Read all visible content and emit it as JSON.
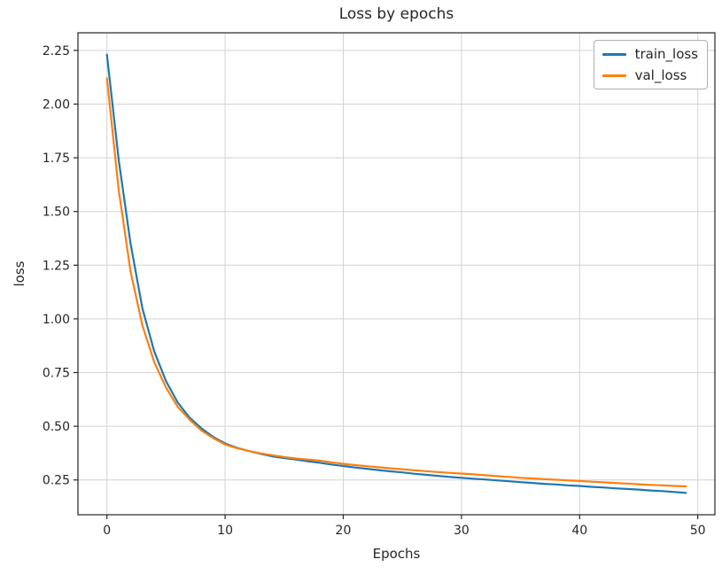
{
  "figure": {
    "background": "#ffffff"
  },
  "chart_data": {
    "type": "line",
    "title": "Loss by epochs",
    "xlabel": "Epochs",
    "ylabel": "loss",
    "x": [
      0,
      1,
      2,
      3,
      4,
      5,
      6,
      7,
      8,
      9,
      10,
      11,
      12,
      13,
      14,
      15,
      16,
      17,
      18,
      19,
      20,
      21,
      22,
      23,
      24,
      25,
      26,
      27,
      28,
      29,
      30,
      31,
      32,
      33,
      34,
      35,
      36,
      37,
      38,
      39,
      40,
      41,
      42,
      43,
      44,
      45,
      46,
      47,
      48,
      49
    ],
    "series": [
      {
        "name": "train_loss",
        "color": "#1f77b4",
        "values": [
          2.23,
          1.74,
          1.35,
          1.05,
          0.85,
          0.71,
          0.61,
          0.54,
          0.49,
          0.45,
          0.42,
          0.4,
          0.385,
          0.372,
          0.36,
          0.352,
          0.345,
          0.337,
          0.33,
          0.322,
          0.315,
          0.308,
          0.302,
          0.296,
          0.29,
          0.285,
          0.279,
          0.274,
          0.269,
          0.264,
          0.26,
          0.256,
          0.252,
          0.248,
          0.244,
          0.24,
          0.236,
          0.232,
          0.229,
          0.225,
          0.222,
          0.218,
          0.215,
          0.211,
          0.208,
          0.205,
          0.201,
          0.198,
          0.194,
          0.19
        ]
      },
      {
        "name": "val_loss",
        "color": "#ff7f0e",
        "values": [
          2.12,
          1.6,
          1.22,
          0.97,
          0.8,
          0.68,
          0.59,
          0.53,
          0.48,
          0.445,
          0.415,
          0.398,
          0.385,
          0.374,
          0.365,
          0.357,
          0.35,
          0.345,
          0.34,
          0.332,
          0.325,
          0.319,
          0.314,
          0.309,
          0.304,
          0.3,
          0.295,
          0.291,
          0.287,
          0.283,
          0.28,
          0.276,
          0.272,
          0.268,
          0.264,
          0.26,
          0.257,
          0.254,
          0.251,
          0.248,
          0.245,
          0.242,
          0.239,
          0.236,
          0.233,
          0.23,
          0.227,
          0.225,
          0.222,
          0.22
        ]
      }
    ],
    "xlim": [
      -2.45,
      51.45
    ],
    "ylim": [
      0.088,
      2.332
    ],
    "xticks": [
      "0",
      "10",
      "20",
      "30",
      "40",
      "50"
    ],
    "yticks": [
      "0.25",
      "0.50",
      "0.75",
      "1.00",
      "1.25",
      "1.50",
      "1.75",
      "2.00",
      "2.25"
    ],
    "grid": true,
    "legend": {
      "position": "upper right",
      "entries": [
        "train_loss",
        "val_loss"
      ]
    },
    "colors": {
      "grid": "#d3d3d3",
      "spine": "#262626",
      "tick_label": "#262626"
    }
  }
}
